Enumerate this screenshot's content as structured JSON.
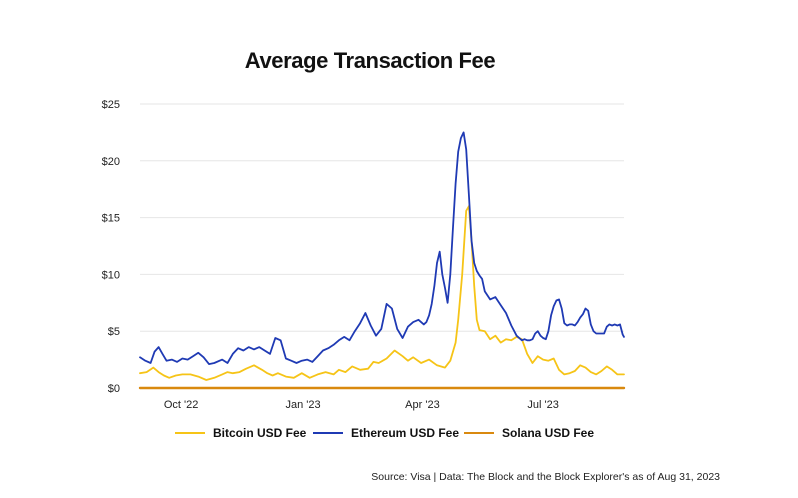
{
  "chart_data": {
    "type": "line",
    "title": "Average Transaction Fee",
    "xlabel": "",
    "ylabel": "",
    "ylim": [
      0,
      25
    ],
    "yticks": [
      0,
      5,
      10,
      15,
      20,
      25
    ],
    "ytick_labels": [
      "$0",
      "$5",
      "$10",
      "$15",
      "$20",
      "$25"
    ],
    "xlim": [
      0,
      365
    ],
    "xticks": [
      {
        "pos": 31,
        "label": "Oct '22"
      },
      {
        "pos": 123,
        "label": "Jan '23"
      },
      {
        "pos": 213,
        "label": "Apr '23"
      },
      {
        "pos": 304,
        "label": "Jul '23"
      }
    ],
    "grid": true,
    "legend_position": "bottom",
    "series": [
      {
        "name": "Bitcoin USD Fee",
        "color": "#f6c417",
        "x": [
          0,
          5,
          10,
          14,
          18,
          22,
          27,
          32,
          38,
          44,
          50,
          56,
          62,
          66,
          70,
          75,
          80,
          86,
          92,
          96,
          100,
          104,
          110,
          116,
          122,
          128,
          134,
          140,
          146,
          150,
          155,
          160,
          166,
          172,
          176,
          180,
          186,
          192,
          198,
          202,
          206,
          212,
          218,
          224,
          230,
          234,
          238,
          240,
          243,
          246,
          248,
          250,
          252,
          254,
          256,
          260,
          264,
          268,
          272,
          276,
          280,
          284,
          288,
          292,
          296,
          300,
          304,
          308,
          312,
          316,
          320,
          324,
          328,
          332,
          336,
          340,
          344,
          348,
          352,
          356,
          360,
          365
        ],
        "values": [
          1.3,
          1.4,
          1.8,
          1.4,
          1.1,
          0.9,
          1.1,
          1.2,
          1.2,
          1.0,
          0.7,
          0.9,
          1.2,
          1.4,
          1.3,
          1.4,
          1.7,
          2.0,
          1.6,
          1.3,
          1.1,
          1.3,
          1.0,
          0.9,
          1.3,
          0.9,
          1.2,
          1.4,
          1.2,
          1.6,
          1.4,
          1.9,
          1.6,
          1.7,
          2.3,
          2.2,
          2.6,
          3.3,
          2.8,
          2.4,
          2.7,
          2.2,
          2.5,
          2.0,
          1.8,
          2.4,
          4.0,
          6.0,
          10.0,
          15.6,
          16.0,
          13.0,
          9.0,
          6.0,
          5.1,
          5.0,
          4.3,
          4.6,
          4.0,
          4.3,
          4.2,
          4.5,
          4.3,
          3.0,
          2.2,
          2.8,
          2.5,
          2.4,
          2.6,
          1.6,
          1.2,
          1.3,
          1.5,
          2.0,
          1.8,
          1.4,
          1.2,
          1.5,
          1.9,
          1.6,
          1.2,
          1.2
        ]
      },
      {
        "name": "Ethereum USD Fee",
        "color": "#1f3ab4",
        "x": [
          0,
          4,
          8,
          11,
          14,
          17,
          20,
          24,
          28,
          32,
          36,
          40,
          44,
          48,
          52,
          56,
          62,
          66,
          70,
          74,
          78,
          82,
          86,
          90,
          94,
          98,
          102,
          106,
          110,
          114,
          118,
          122,
          126,
          130,
          134,
          138,
          142,
          146,
          150,
          154,
          158,
          162,
          166,
          170,
          174,
          178,
          182,
          186,
          190,
          194,
          198,
          202,
          206,
          210,
          214,
          216,
          218,
          220,
          222,
          224,
          226,
          228,
          230,
          232,
          234,
          236,
          238,
          240,
          242,
          244,
          246,
          248,
          250,
          252,
          254,
          256,
          258,
          260,
          264,
          268,
          272,
          276,
          280,
          284,
          288,
          290,
          292,
          294,
          296,
          298,
          300,
          302,
          304,
          306,
          308,
          310,
          312,
          314,
          316,
          318,
          320,
          322,
          324,
          326,
          328,
          330,
          332,
          334,
          336,
          338,
          340,
          342,
          344,
          346,
          348,
          350,
          352,
          354,
          356,
          358,
          360,
          362,
          364,
          365
        ],
        "values": [
          2.7,
          2.4,
          2.2,
          3.2,
          3.6,
          3.0,
          2.4,
          2.5,
          2.3,
          2.6,
          2.5,
          2.8,
          3.1,
          2.7,
          2.1,
          2.2,
          2.5,
          2.2,
          3.0,
          3.5,
          3.3,
          3.6,
          3.4,
          3.6,
          3.3,
          3.0,
          4.4,
          4.2,
          2.6,
          2.4,
          2.2,
          2.4,
          2.5,
          2.3,
          2.8,
          3.3,
          3.5,
          3.8,
          4.2,
          4.5,
          4.2,
          5.0,
          5.7,
          6.6,
          5.5,
          4.6,
          5.2,
          7.4,
          7.0,
          5.2,
          4.4,
          5.4,
          5.8,
          6.0,
          5.6,
          5.8,
          6.4,
          7.4,
          9.0,
          11.0,
          12.0,
          10.0,
          8.8,
          7.5,
          10.0,
          14.0,
          18.0,
          20.8,
          22.0,
          22.5,
          21.0,
          17.0,
          13.0,
          11.0,
          10.3,
          9.9,
          9.6,
          8.5,
          7.8,
          8.0,
          7.3,
          6.6,
          5.5,
          4.6,
          4.2,
          4.3,
          4.2,
          4.2,
          4.3,
          4.8,
          5.0,
          4.6,
          4.4,
          4.3,
          5.0,
          6.4,
          7.2,
          7.7,
          7.8,
          7.0,
          5.7,
          5.5,
          5.6,
          5.6,
          5.5,
          5.8,
          6.2,
          6.5,
          7.0,
          6.8,
          5.6,
          5.0,
          4.8,
          4.8,
          4.8,
          4.8,
          5.4,
          5.6,
          5.5,
          5.6,
          5.5,
          5.6,
          4.7,
          4.5
        ]
      },
      {
        "name": "Solana USD Fee",
        "color": "#d9890f",
        "x": [
          0,
          365
        ],
        "values": [
          0.0,
          0.0
        ]
      }
    ],
    "source": "Source: Visa | Data: The Block and the Block Explorer's as of Aug 31, 2023"
  }
}
